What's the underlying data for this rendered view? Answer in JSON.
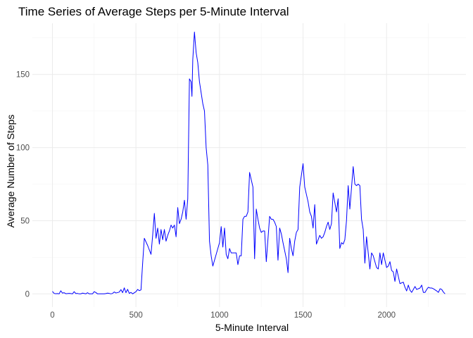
{
  "chart_data": {
    "type": "line",
    "title": "Time Series of Average Steps per 5-Minute Interval",
    "xlabel": "5-Minute Interval",
    "ylabel": "Average Number of Steps",
    "xlim": [
      -120,
      2475
    ],
    "ylim": [
      -9,
      185
    ],
    "x_ticks": [
      0,
      500,
      1000,
      1500,
      2000
    ],
    "y_ticks": [
      0,
      50,
      100,
      150
    ],
    "x_tick_labels": [
      "0",
      "500",
      "1000",
      "1500",
      "2000"
    ],
    "y_tick_labels": [
      "0",
      "50",
      "100",
      "150"
    ],
    "grid": true,
    "legend": "none",
    "line_color": "#0000ff",
    "series": [
      {
        "x": [
          0,
          10,
          20,
          30,
          40,
          50,
          60,
          70,
          80,
          100,
          110,
          120,
          130,
          140,
          150,
          160,
          170,
          180,
          200,
          210,
          220,
          230,
          240,
          250,
          260,
          270,
          280,
          300,
          310,
          320,
          330,
          340,
          350,
          360,
          370,
          380,
          400,
          410,
          420,
          430,
          440,
          450,
          460,
          470,
          480,
          500,
          510,
          520,
          530,
          540,
          550,
          570,
          590,
          600,
          610,
          620,
          630,
          640,
          650,
          660,
          670,
          680,
          690,
          700,
          710,
          720,
          730,
          740,
          750,
          760,
          770,
          780,
          790,
          800,
          810,
          820,
          830,
          835,
          840,
          850,
          860,
          870,
          880,
          900,
          910,
          920,
          930,
          940,
          950,
          960,
          980,
          1000,
          1010,
          1020,
          1030,
          1040,
          1050,
          1060,
          1070,
          1080,
          1100,
          1110,
          1120,
          1130,
          1140,
          1150,
          1160,
          1170,
          1180,
          1200,
          1210,
          1220,
          1230,
          1240,
          1250,
          1260,
          1270,
          1280,
          1300,
          1310,
          1320,
          1330,
          1340,
          1350,
          1360,
          1370,
          1380,
          1400,
          1410,
          1420,
          1430,
          1440,
          1450,
          1460,
          1470,
          1480,
          1500,
          1510,
          1520,
          1530,
          1540,
          1550,
          1560,
          1570,
          1580,
          1600,
          1610,
          1620,
          1630,
          1640,
          1650,
          1660,
          1670,
          1680,
          1700,
          1710,
          1720,
          1730,
          1740,
          1750,
          1760,
          1770,
          1780,
          1800,
          1810,
          1820,
          1830,
          1840,
          1850,
          1860,
          1870,
          1880,
          1900,
          1910,
          1920,
          1930,
          1940,
          1950,
          1960,
          1970,
          1980,
          2000,
          2010,
          2020,
          2030,
          2040,
          2050,
          2060,
          2070,
          2080,
          2100,
          2110,
          2120,
          2130,
          2140,
          2150,
          2160,
          2170,
          2180,
          2200,
          2210,
          2220,
          2230,
          2240,
          2250,
          2260,
          2270,
          2280,
          2300,
          2310,
          2320,
          2330,
          2340,
          2350
        ],
        "values": [
          1.7,
          0.3,
          0.1,
          0.2,
          0.0,
          2.1,
          0.5,
          0.8,
          0.1,
          0.3,
          0.2,
          0.0,
          1.5,
          0.2,
          0.3,
          0.0,
          0.0,
          0.5,
          0.0,
          0.8,
          0.0,
          0.0,
          0.0,
          1.5,
          0.9,
          0.0,
          0.0,
          0.0,
          0.0,
          0.2,
          0.5,
          0.3,
          0.0,
          0.3,
          1.3,
          0.6,
          1.2,
          2.9,
          0.8,
          4.1,
          0.8,
          3.1,
          0.3,
          1.0,
          0.0,
          1.5,
          3.0,
          2.2,
          2.7,
          21.0,
          38.0,
          33.0,
          27.0,
          40.0,
          55.0,
          38.0,
          45.0,
          34.0,
          44.0,
          37.0,
          44.0,
          36.0,
          40.0,
          43.0,
          47.0,
          45.0,
          47.0,
          39.0,
          59.0,
          48.0,
          51.0,
          56.0,
          64.0,
          51.0,
          65.0,
          147.0,
          145.0,
          135.0,
          160.0,
          179.0,
          165.0,
          158.0,
          145.0,
          130.0,
          125.0,
          100.0,
          88.0,
          36.0,
          26.0,
          19.0,
          27.0,
          35.0,
          46.0,
          32.0,
          45.0,
          27.0,
          24.0,
          31.0,
          28.0,
          28.0,
          28.0,
          20.0,
          26.0,
          26.0,
          51.0,
          53.0,
          53.0,
          56.0,
          83.0,
          73.0,
          24.0,
          58.0,
          51.0,
          45.0,
          42.0,
          43.0,
          43.0,
          22.0,
          53.0,
          51.0,
          51.0,
          49.0,
          46.0,
          23.0,
          45.0,
          41.0,
          35.0,
          24.0,
          14.5,
          38.0,
          31.0,
          26.0,
          36.0,
          42.0,
          44.0,
          73.0,
          89.0,
          73.0,
          68.0,
          63.0,
          56.0,
          53.0,
          45.0,
          61.0,
          34.0,
          40.0,
          38.0,
          39.0,
          42.0,
          46.0,
          49.0,
          44.0,
          48.0,
          69.0,
          56.0,
          65.0,
          31.0,
          35.0,
          34.0,
          37.0,
          50.0,
          74.0,
          58.0,
          87.0,
          75.0,
          74.0,
          75.0,
          74.0,
          51.0,
          44.0,
          21.0,
          39.0,
          17.0,
          28.0,
          26.0,
          22.0,
          18.0,
          17.0,
          28.0,
          20.0,
          28.0,
          18.0,
          19.0,
          22.0,
          16.0,
          15.0,
          8.5,
          17.0,
          12.0,
          7.0,
          8.0,
          4.5,
          2.0,
          6.0,
          2.5,
          1.0,
          3.0,
          5.0,
          3.0,
          4.0,
          6.0,
          1.0,
          1.0,
          3.0,
          4.5,
          4.0,
          4.0,
          3.5,
          2.0,
          1.0,
          3.5,
          3.0,
          1.2,
          0.0
        ]
      }
    ]
  }
}
